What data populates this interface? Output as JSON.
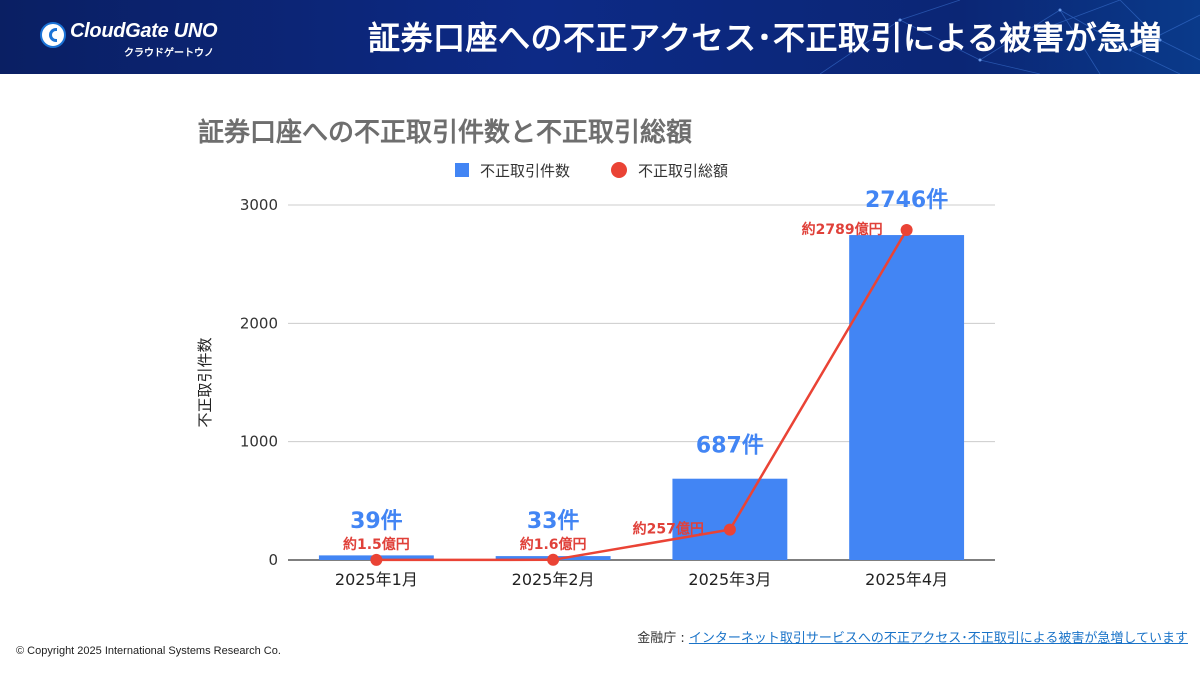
{
  "header": {
    "logo_main": "CloudGate UNO",
    "logo_sub": "クラウドゲートウノ",
    "title": "証券口座への不正アクセス･不正取引による被害が急増"
  },
  "chart_data": {
    "type": "bar+line",
    "title": "証券口座への不正取引件数と不正取引総額",
    "ylabel": "不正取引件数",
    "ylim": [
      0,
      3000
    ],
    "yticks": [
      0,
      1000,
      2000,
      3000
    ],
    "categories": [
      "2025年1月",
      "2025年2月",
      "2025年3月",
      "2025年4月"
    ],
    "legend_position": "top-center",
    "series": [
      {
        "name": "不正取引件数",
        "type": "bar",
        "color": "#4285f4",
        "values": [
          39,
          33,
          687,
          2746
        ],
        "labels": [
          "39件",
          "33件",
          "687件",
          "2746件"
        ]
      },
      {
        "name": "不正取引総額",
        "type": "line",
        "color": "#ea4335",
        "values": [
          1.5,
          1.6,
          257,
          2789
        ],
        "unit": "億円",
        "labels": [
          "約1.5億円",
          "約1.6億円",
          "約257億円",
          "約2789億円"
        ]
      }
    ]
  },
  "footer": {
    "source_prefix": "金融庁 : ",
    "source_link": "インターネット取引サービスへの不正アクセス･不正取引による被害が急増しています",
    "copyright": "© Copyright 2025 International Systems Research Co."
  }
}
